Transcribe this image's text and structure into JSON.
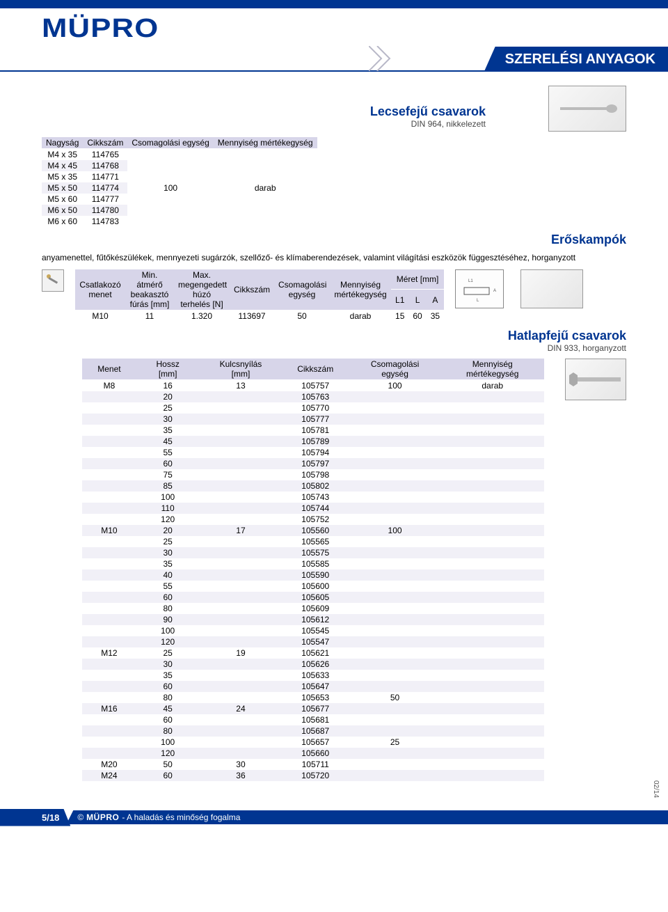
{
  "page": {
    "brand": "MÜPRO",
    "category_title": "SZERELÉSI ANYAGOK",
    "page_number": "5/18",
    "footer_text": " - A haladás és minőség fogalma",
    "footer_copyright": "©",
    "date_code": "02/14"
  },
  "colors": {
    "brand_blue": "#003591",
    "header_fill": "#d7d5e9",
    "row_alt": "#f1f0f7",
    "text": "#000000",
    "subtext": "#464646"
  },
  "section1": {
    "title": "Lecsefejű csavarok",
    "subtitle": "DIN 964, nikkelezett",
    "columns": [
      "Nagyság",
      "Cikkszám",
      "Csomagolási egység",
      "Mennyiség mértékegység"
    ],
    "pkg": "100",
    "unit": "darab",
    "rows": [
      {
        "size": "M4 x 35",
        "sku": "114765"
      },
      {
        "size": "M4 x 45",
        "sku": "114768"
      },
      {
        "size": "M5 x 35",
        "sku": "114771"
      },
      {
        "size": "M5 x 50",
        "sku": "114774"
      },
      {
        "size": "M5 x 60",
        "sku": "114777"
      },
      {
        "size": "M6 x 50",
        "sku": "114780"
      },
      {
        "size": "M6 x 60",
        "sku": "114783"
      }
    ]
  },
  "section2": {
    "title": "Erőskampók",
    "description": "anyamenettel, fűtőkészülékek, mennyezeti sugárzók, szellőző- és klímaberendezések, valamint világítási eszközök függesztéséhez, horganyzott",
    "columns": {
      "c1": "Csatlakozó menet",
      "c2": "Min. átmérő beakasztó fúrás [mm]",
      "c3": "Max. megengedett húzó terhelés [N]",
      "c4": "Cikkszám",
      "c5": "Csomagolási egység",
      "c6": "Mennyiség mértékegység",
      "c7": "Méret [mm]",
      "c7a": "L1",
      "c7b": "L",
      "c7c": "A"
    },
    "row": {
      "thread": "M10",
      "min_dia": "11",
      "max_load": "1.320",
      "sku": "113697",
      "pkg": "50",
      "unit": "darab",
      "L1": "15",
      "L": "60",
      "A": "35"
    }
  },
  "section3": {
    "title": "Hatlapfejű csavarok",
    "subtitle": "DIN 933, horganyzott",
    "columns": [
      "Menet",
      "Hossz [mm]",
      "Kulcsnyílás [mm]",
      "Cikkszám",
      "Csomagolási egység",
      "Mennyiség mértékegység"
    ],
    "unit": "darab",
    "groups": [
      {
        "thread": "M8",
        "wrench": "13",
        "pkg_first": "100",
        "rows": [
          {
            "len": "16",
            "sku": "105757"
          },
          {
            "len": "20",
            "sku": "105763"
          },
          {
            "len": "25",
            "sku": "105770"
          },
          {
            "len": "30",
            "sku": "105777"
          },
          {
            "len": "35",
            "sku": "105781"
          },
          {
            "len": "45",
            "sku": "105789"
          },
          {
            "len": "55",
            "sku": "105794"
          },
          {
            "len": "60",
            "sku": "105797"
          },
          {
            "len": "75",
            "sku": "105798"
          },
          {
            "len": "85",
            "sku": "105802"
          },
          {
            "len": "100",
            "sku": "105743"
          },
          {
            "len": "110",
            "sku": "105744"
          },
          {
            "len": "120",
            "sku": "105752"
          }
        ]
      },
      {
        "thread": "M10",
        "wrench": "17",
        "pkg_first": "100",
        "rows": [
          {
            "len": "20",
            "sku": "105560"
          },
          {
            "len": "25",
            "sku": "105565"
          },
          {
            "len": "30",
            "sku": "105575"
          },
          {
            "len": "35",
            "sku": "105585"
          },
          {
            "len": "40",
            "sku": "105590"
          },
          {
            "len": "55",
            "sku": "105600"
          },
          {
            "len": "60",
            "sku": "105605"
          },
          {
            "len": "80",
            "sku": "105609"
          },
          {
            "len": "90",
            "sku": "105612"
          },
          {
            "len": "100",
            "sku": "105545"
          },
          {
            "len": "120",
            "sku": "105547"
          }
        ]
      },
      {
        "thread": "M12",
        "wrench": "19",
        "rows": [
          {
            "len": "25",
            "sku": "105621"
          },
          {
            "len": "30",
            "sku": "105626"
          },
          {
            "len": "35",
            "sku": "105633"
          },
          {
            "len": "60",
            "sku": "105647"
          },
          {
            "len": "80",
            "sku": "105653",
            "pkg": "50"
          }
        ]
      },
      {
        "thread": "M16",
        "wrench": "24",
        "rows": [
          {
            "len": "45",
            "sku": "105677"
          },
          {
            "len": "60",
            "sku": "105681"
          },
          {
            "len": "80",
            "sku": "105687"
          },
          {
            "len": "100",
            "sku": "105657",
            "pkg": "25"
          },
          {
            "len": "120",
            "sku": "105660"
          }
        ]
      },
      {
        "thread": "M20",
        "wrench": "30",
        "rows": [
          {
            "len": "50",
            "sku": "105711"
          }
        ]
      },
      {
        "thread": "M24",
        "wrench": "36",
        "rows": [
          {
            "len": "60",
            "sku": "105720"
          }
        ]
      }
    ]
  }
}
